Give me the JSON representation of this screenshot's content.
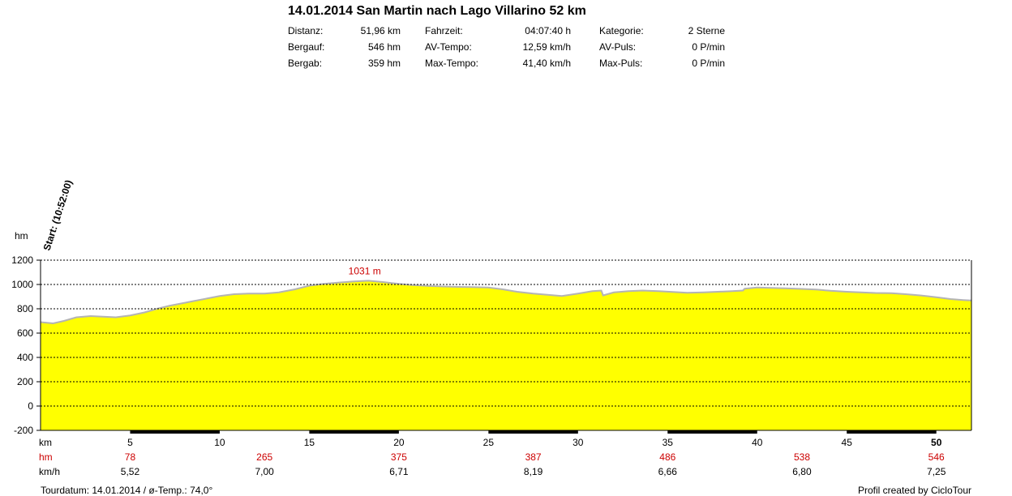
{
  "header": {
    "title": "14.01.2014 San Martin nach Lago Villarino 52 km",
    "stats": [
      {
        "label": "Distanz:",
        "value": "51,96 km"
      },
      {
        "label": "Bergauf:",
        "value": "546 hm"
      },
      {
        "label": "Bergab:",
        "value": "359 hm"
      },
      {
        "label": "Fahrzeit:",
        "value": "04:07:40 h"
      },
      {
        "label": "AV-Tempo:",
        "value": "12,59 km/h"
      },
      {
        "label": "Max-Tempo:",
        "value": "41,40 km/h"
      },
      {
        "label": "Kategorie:",
        "value": "2 Sterne"
      },
      {
        "label": "AV-Puls:",
        "value": "0 P/min"
      },
      {
        "label": "Max-Puls:",
        "value": "0 P/min"
      }
    ]
  },
  "colors": {
    "fill": "#ffff00",
    "profile_line": "#b4b4b4",
    "red_text": "#cc0000",
    "black": "#000000"
  },
  "chart_data": {
    "type": "area",
    "ylabel": "hm",
    "xlabel": "km",
    "ylim": [
      -200,
      1200
    ],
    "xlim": [
      0,
      51.96
    ],
    "yticks": [
      1200,
      1000,
      800,
      600,
      400,
      200,
      0,
      -200
    ],
    "xticks": [
      5,
      10,
      15,
      20,
      25,
      30,
      35,
      40,
      45,
      50
    ],
    "grid": "horizontal dotted",
    "start_label": "Start: (10:52:00)",
    "peak_annotation": {
      "label": "1031 m",
      "x": 18,
      "y": 1031
    },
    "series": [
      {
        "x": [
          0,
          0.7,
          1.3,
          2.0,
          2.8,
          3.5,
          4.2,
          5.0,
          5.8,
          6.5,
          7.2,
          7.9,
          8.6,
          9.3,
          10.0,
          10.8,
          11.6,
          12.5,
          13.3,
          14.2,
          15.0,
          15.8,
          16.6,
          17.5,
          18.3,
          19.1,
          20.0,
          20.8,
          21.6,
          22.5,
          23.3,
          24.1,
          25.0,
          25.8,
          26.6,
          27.5,
          28.3,
          29.1,
          30.0,
          30.8,
          31.3,
          31.4,
          32.0,
          32.8,
          33.6,
          34.5,
          35.3,
          36.1,
          37.0,
          37.8,
          38.6,
          39.2,
          39.3,
          40.0,
          40.8,
          41.6,
          42.5,
          43.3,
          44.1,
          45.0,
          45.8,
          46.6,
          47.5,
          48.3,
          49.1,
          50.0,
          50.8,
          51.5,
          51.96
        ],
        "y": [
          690,
          680,
          700,
          730,
          740,
          735,
          730,
          745,
          770,
          800,
          825,
          845,
          865,
          885,
          905,
          920,
          925,
          925,
          935,
          960,
          990,
          1005,
          1015,
          1025,
          1031,
          1020,
          1005,
          995,
          988,
          983,
          980,
          978,
          975,
          960,
          940,
          925,
          915,
          905,
          925,
          945,
          950,
          910,
          935,
          945,
          950,
          945,
          938,
          932,
          935,
          940,
          945,
          950,
          965,
          975,
          972,
          968,
          963,
          958,
          948,
          940,
          935,
          930,
          928,
          920,
          910,
          895,
          880,
          872,
          868
        ]
      }
    ],
    "km_markers": [
      "5",
      "10",
      "15",
      "20",
      "25",
      "30",
      "35",
      "40",
      "45",
      "50"
    ],
    "hm_values": [
      "78",
      "265",
      "375",
      "387",
      "486",
      "538",
      "546"
    ],
    "kmh_values": [
      "5,52",
      "7,00",
      "6,71",
      "8,19",
      "6,66",
      "6,80",
      "7,25"
    ],
    "row_labels": {
      "km": "km",
      "hm": "hm",
      "kmh": "km/h"
    }
  },
  "footer": {
    "left": "Tourdatum: 14.01.2014  /  ø-Temp.: 74,0°",
    "right": "Profil created by CicloTour"
  }
}
